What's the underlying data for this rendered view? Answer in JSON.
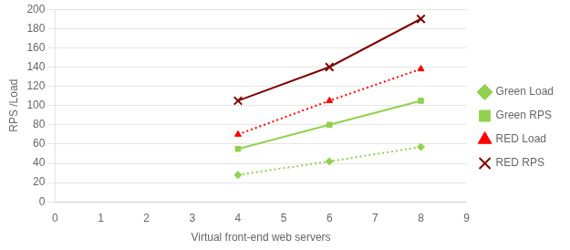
{
  "chart_data": {
    "type": "line",
    "xlabel": "Virtual front-end web servers",
    "ylabel": "RPS /Load",
    "xlim": [
      0,
      9
    ],
    "xticks": [
      0,
      1,
      2,
      3,
      4,
      5,
      6,
      7,
      8,
      9
    ],
    "ylim": [
      0,
      200
    ],
    "yticks": [
      0,
      20,
      40,
      60,
      80,
      100,
      120,
      140,
      160,
      180,
      200
    ],
    "grid": "y",
    "legend": "right",
    "x": [
      4,
      6,
      8
    ],
    "series": [
      {
        "name": "Green Load",
        "color": "#92d050",
        "marker": "diamond",
        "line_style": "dotted",
        "values": [
          28,
          42,
          57
        ]
      },
      {
        "name": "Green RPS",
        "color": "#92d050",
        "marker": "square",
        "line_style": "solid",
        "values": [
          55,
          80,
          105
        ]
      },
      {
        "name": "RED Load",
        "color": "#ff0000",
        "marker": "triangle",
        "line_style": "dotted",
        "values": [
          70,
          105,
          138
        ]
      },
      {
        "name": "RED RPS",
        "color": "#7f0000",
        "marker": "x",
        "line_style": "solid",
        "values": [
          105,
          140,
          190
        ]
      }
    ]
  }
}
